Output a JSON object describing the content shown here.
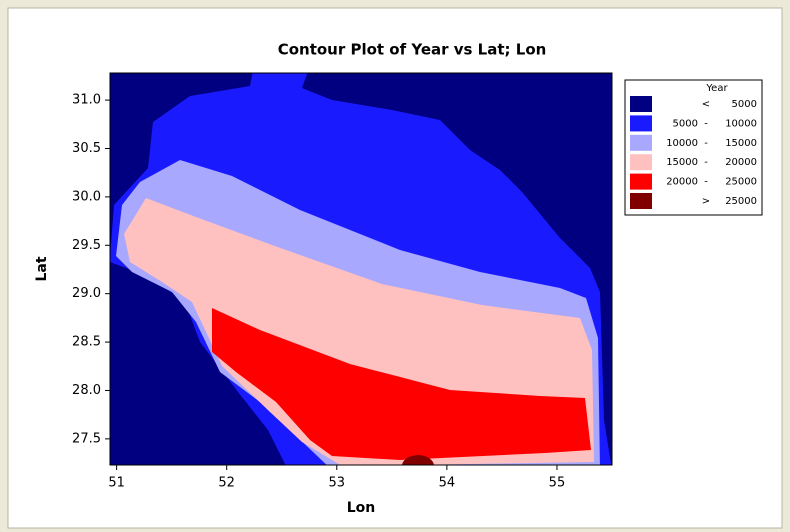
{
  "chart_data": {
    "type": "contour",
    "title": "Contour Plot of Year vs Lat; Lon",
    "xlabel": "Lon",
    "ylabel": "Lat",
    "xlim": [
      50.94,
      55.5
    ],
    "ylim": [
      27.23,
      31.28
    ],
    "xticks": [
      51,
      52,
      53,
      54,
      55
    ],
    "yticks": [
      {
        "value": 31,
        "label": "31.0"
      },
      30.5,
      {
        "value": 30,
        "label": "30.0"
      },
      29.5,
      {
        "value": 29,
        "label": "29.0"
      },
      28.5,
      {
        "value": 28,
        "label": "28.0"
      },
      27.5
    ],
    "legend_title": "Year",
    "levels": [
      {
        "op": "<",
        "upper": 5000,
        "color": "#000080"
      },
      {
        "lower": 5000,
        "op": "-",
        "upper": 10000,
        "color": "#1a1aff"
      },
      {
        "lower": 10000,
        "op": "-",
        "upper": 15000,
        "color": "#a8a8ff"
      },
      {
        "lower": 15000,
        "op": "-",
        "upper": 20000,
        "color": "#ffc0c0"
      },
      {
        "lower": 20000,
        "op": "-",
        "upper": 25000,
        "color": "#ff0000"
      },
      {
        "op": ">",
        "lower": 25000,
        "color": "#800000"
      }
    ]
  }
}
